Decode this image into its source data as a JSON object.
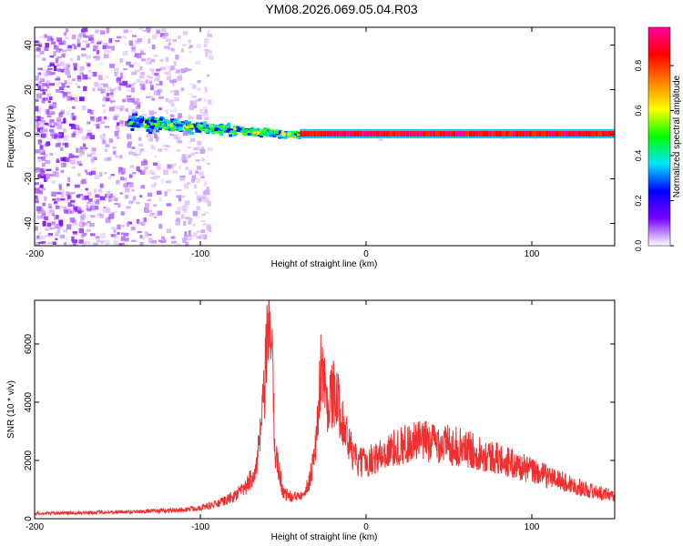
{
  "title": "YM08.2026.069.05.04.R03",
  "chart_data": [
    {
      "type": "heatmap",
      "xlabel": "Height of straight line (km)",
      "ylabel": "Frequency (Hz)",
      "xlim": [
        -200,
        150
      ],
      "ylim": [
        -50,
        48
      ],
      "x_ticks": [
        -200,
        -100,
        0,
        100
      ],
      "y_ticks": [
        -40,
        -20,
        0,
        20,
        40
      ],
      "colorbar": {
        "label": "Normalized spectral amplitude",
        "range": [
          0,
          0.97
        ],
        "ticks": [
          "0.0",
          "0.2",
          "0.4",
          "0.6",
          "0.8"
        ],
        "colors": [
          "#ffffff",
          "#7a00ff",
          "#0000ff",
          "#00e5ff",
          "#00ff00",
          "#ffff00",
          "#ff8000",
          "#ff0000",
          "#ff00a0"
        ]
      },
      "regions": [
        {
          "x": [
            -200,
            -95
          ],
          "y": [
            -50,
            48
          ],
          "amplitude": "scattered 0.0-0.15"
        },
        {
          "x": [
            -145,
            -40
          ],
          "y": [
            -8,
            12
          ],
          "amplitude": "0.2-0.6 (band converging toward 0 Hz)"
        },
        {
          "x": [
            -40,
            150
          ],
          "y": [
            -1,
            1.5
          ],
          "amplitude": "0.8-0.97 (narrow line at 0 Hz)"
        }
      ]
    },
    {
      "type": "line",
      "xlabel": "Height of straight line (km)",
      "ylabel": "SNR (10 * v/v)",
      "xlim": [
        -200,
        150
      ],
      "ylim": [
        0,
        7500
      ],
      "x_ticks": [
        -200,
        -100,
        0,
        100
      ],
      "y_ticks": [
        0,
        2000,
        4000,
        6000
      ],
      "color": "#f03030",
      "envelope": [
        {
          "x": -200,
          "y": 180
        },
        {
          "x": -180,
          "y": 200
        },
        {
          "x": -150,
          "y": 230
        },
        {
          "x": -130,
          "y": 260
        },
        {
          "x": -110,
          "y": 300
        },
        {
          "x": -100,
          "y": 380
        },
        {
          "x": -90,
          "y": 500
        },
        {
          "x": -80,
          "y": 750
        },
        {
          "x": -72,
          "y": 1100
        },
        {
          "x": -66,
          "y": 1800
        },
        {
          "x": -62,
          "y": 3800
        },
        {
          "x": -58,
          "y": 7400
        },
        {
          "x": -55,
          "y": 2400
        },
        {
          "x": -50,
          "y": 900
        },
        {
          "x": -44,
          "y": 700
        },
        {
          "x": -40,
          "y": 850
        },
        {
          "x": -35,
          "y": 1100
        },
        {
          "x": -30,
          "y": 2600
        },
        {
          "x": -27,
          "y": 5500
        },
        {
          "x": -24,
          "y": 4000
        },
        {
          "x": -20,
          "y": 4300
        },
        {
          "x": -15,
          "y": 3700
        },
        {
          "x": -12,
          "y": 2900
        },
        {
          "x": -8,
          "y": 2200
        },
        {
          "x": -5,
          "y": 1900
        },
        {
          "x": 0,
          "y": 1950
        },
        {
          "x": 10,
          "y": 2200
        },
        {
          "x": 20,
          "y": 2500
        },
        {
          "x": 30,
          "y": 2650
        },
        {
          "x": 40,
          "y": 2650
        },
        {
          "x": 50,
          "y": 2550
        },
        {
          "x": 60,
          "y": 2400
        },
        {
          "x": 70,
          "y": 2250
        },
        {
          "x": 80,
          "y": 2050
        },
        {
          "x": 90,
          "y": 1850
        },
        {
          "x": 100,
          "y": 1650
        },
        {
          "x": 110,
          "y": 1450
        },
        {
          "x": 120,
          "y": 1250
        },
        {
          "x": 130,
          "y": 1050
        },
        {
          "x": 140,
          "y": 900
        },
        {
          "x": 150,
          "y": 800
        }
      ]
    }
  ]
}
